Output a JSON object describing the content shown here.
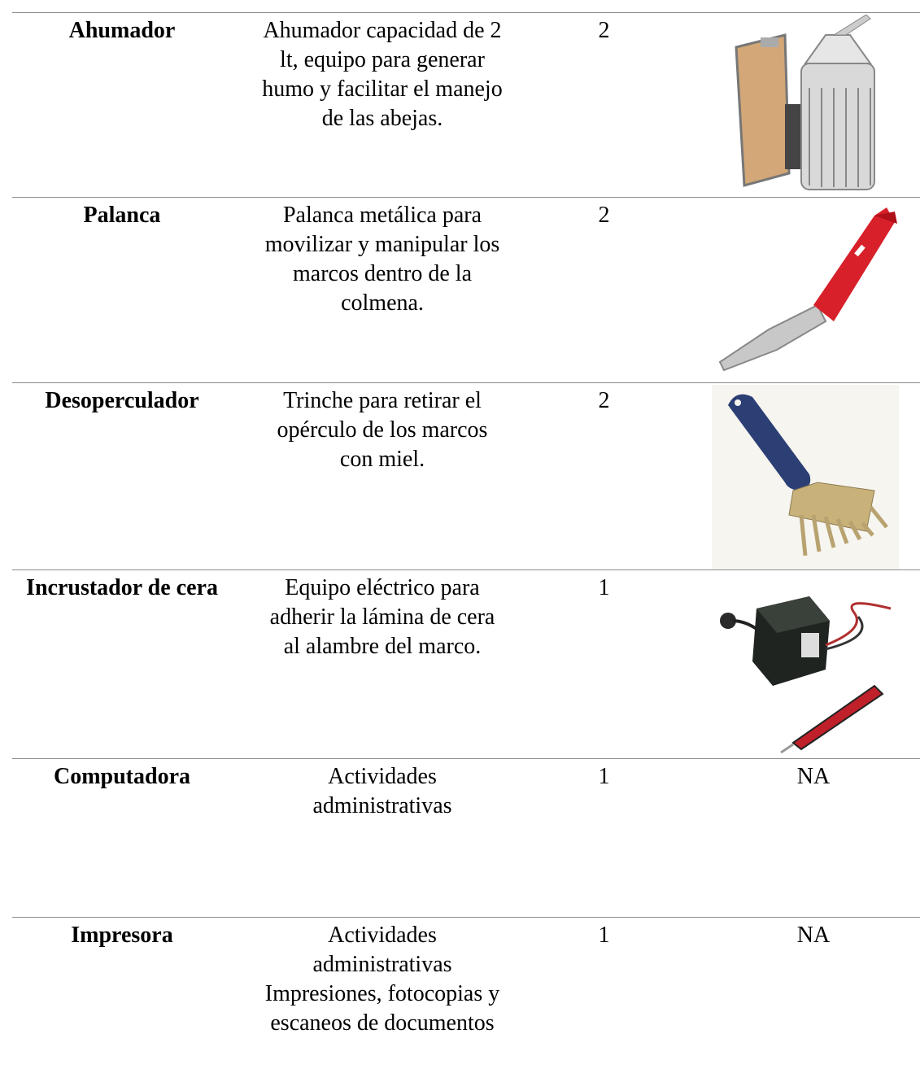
{
  "table": {
    "rows": [
      {
        "name": "Ahumador",
        "description": [
          "Ahumador capacidad de 2",
          "lt, equipo para generar",
          "humo y facilitar el manejo",
          "de las abejas."
        ],
        "quantity": 2
      },
      {
        "name": "Palanca",
        "description": [
          "Palanca metálica para",
          "movilizar y manipular los",
          "marcos dentro de la",
          "colmena."
        ],
        "quantity": 2
      },
      {
        "name": "Desoperculador",
        "description": [
          "Trinche para retirar el",
          "opérculo de los marcos",
          "con miel."
        ],
        "quantity": 2
      },
      {
        "name": "Incrustador de cera",
        "description": [
          "Equipo eléctrico para",
          "adherir la lámina de cera",
          "al alambre del marco."
        ],
        "quantity": 1
      },
      {
        "name": "Computadora",
        "description": [
          "Actividades",
          "administrativas"
        ],
        "quantity": 1,
        "image": "NA"
      },
      {
        "name": "Impresora",
        "description": [
          "Actividades",
          "administrativas",
          "Impresiones, fotocopias y",
          "escaneos de documentos"
        ],
        "quantity": 1,
        "image": "NA"
      }
    ]
  }
}
